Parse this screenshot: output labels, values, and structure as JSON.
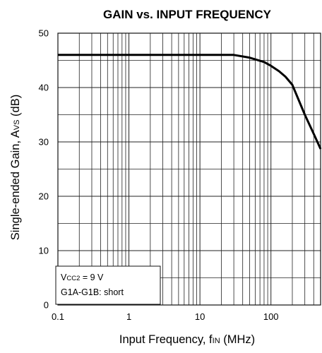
{
  "chart_data": {
    "type": "line",
    "title": "GAIN vs. INPUT FREQUENCY",
    "xlabel": {
      "main": "Input Frequency, f",
      "sub": "IN",
      "unit": " (MHz)"
    },
    "ylabel": {
      "main": "Single-ended Gain, A",
      "sub": "VS",
      "unit": " (dB)"
    },
    "xscale": "log",
    "xlim": [
      0.1,
      500
    ],
    "ylim": [
      0,
      50
    ],
    "x_ticks": [
      0.1,
      1,
      10,
      100
    ],
    "x_tick_labels": [
      "0.1",
      "1",
      "10",
      "100"
    ],
    "y_ticks": [
      0,
      10,
      20,
      30,
      40,
      50
    ],
    "y_tick_labels": [
      "0",
      "10",
      "20",
      "30",
      "40",
      "50"
    ],
    "y_minor_step": 5,
    "grid": true,
    "series": [
      {
        "name": "",
        "x": [
          0.1,
          1,
          10,
          30,
          50,
          80,
          100,
          130,
          160,
          200,
          300,
          400,
          500
        ],
        "y": [
          46,
          46,
          46,
          46,
          45.5,
          44.7,
          44,
          43,
          42,
          40.5,
          35,
          31.5,
          28.7
        ]
      }
    ],
    "annotation": {
      "line1": {
        "prefix": "V",
        "sub": "CC2",
        "suffix": " = 9 V"
      },
      "line2": "G1A-G1B: short"
    }
  }
}
